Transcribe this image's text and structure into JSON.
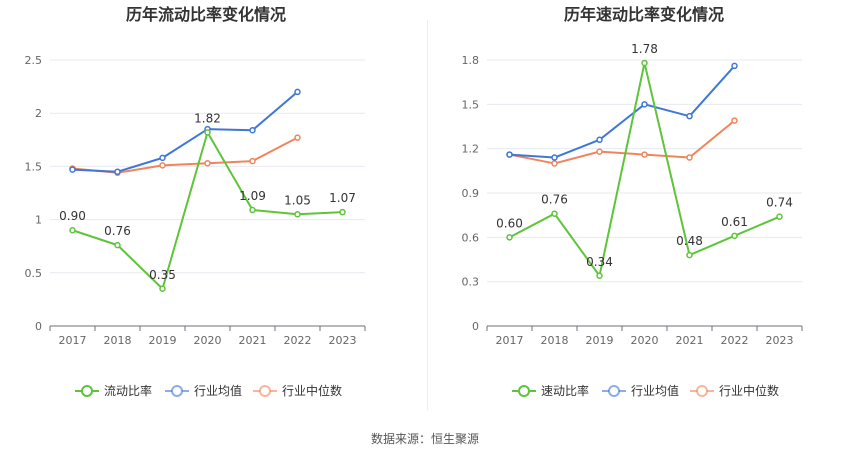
{
  "source_text": "数据来源：恒生聚源",
  "chart_data": [
    {
      "type": "line",
      "title": "历年流动比率变化情况",
      "categories": [
        "2017",
        "2018",
        "2019",
        "2020",
        "2021",
        "2022",
        "2023"
      ],
      "ylim": [
        0,
        2.5
      ],
      "yticks": [
        "0",
        "0.5",
        "1",
        "1.5",
        "2",
        "2.5"
      ],
      "grid": true,
      "legend_position": "bottom",
      "series": [
        {
          "name": "流动比率",
          "color": "#5ec43a",
          "values": [
            0.9,
            0.76,
            0.35,
            1.82,
            1.09,
            1.05,
            1.07
          ],
          "labels": [
            "0.90",
            "0.76",
            "0.35",
            "1.82",
            "1.09",
            "1.05",
            "1.07"
          ]
        },
        {
          "name": "行业均值",
          "color": "#3f77d6",
          "values": [
            1.47,
            1.45,
            1.58,
            1.85,
            1.84,
            2.2,
            null
          ]
        },
        {
          "name": "行业中位数",
          "color": "#f0855b",
          "values": [
            1.48,
            1.44,
            1.51,
            1.53,
            1.55,
            1.77,
            null
          ]
        }
      ]
    },
    {
      "type": "line",
      "title": "历年速动比率变化情况",
      "categories": [
        "2017",
        "2018",
        "2019",
        "2020",
        "2021",
        "2022",
        "2023"
      ],
      "ylim": [
        0,
        1.8
      ],
      "yticks": [
        "0",
        "0.3",
        "0.6",
        "0.9",
        "1.2",
        "1.5",
        "1.8"
      ],
      "grid": true,
      "legend_position": "bottom",
      "series": [
        {
          "name": "速动比率",
          "color": "#5ec43a",
          "values": [
            0.6,
            0.76,
            0.34,
            1.78,
            0.48,
            0.61,
            0.74
          ],
          "labels": [
            "0.60",
            "0.76",
            "0.34",
            "1.78",
            "0.48",
            "0.61",
            "0.74"
          ]
        },
        {
          "name": "行业均值",
          "color": "#3f77d6",
          "values": [
            1.16,
            1.14,
            1.26,
            1.5,
            1.42,
            1.76,
            null
          ]
        },
        {
          "name": "行业中位数",
          "color": "#f0855b",
          "values": [
            1.16,
            1.1,
            1.18,
            1.16,
            1.14,
            1.39,
            null
          ]
        }
      ]
    }
  ]
}
